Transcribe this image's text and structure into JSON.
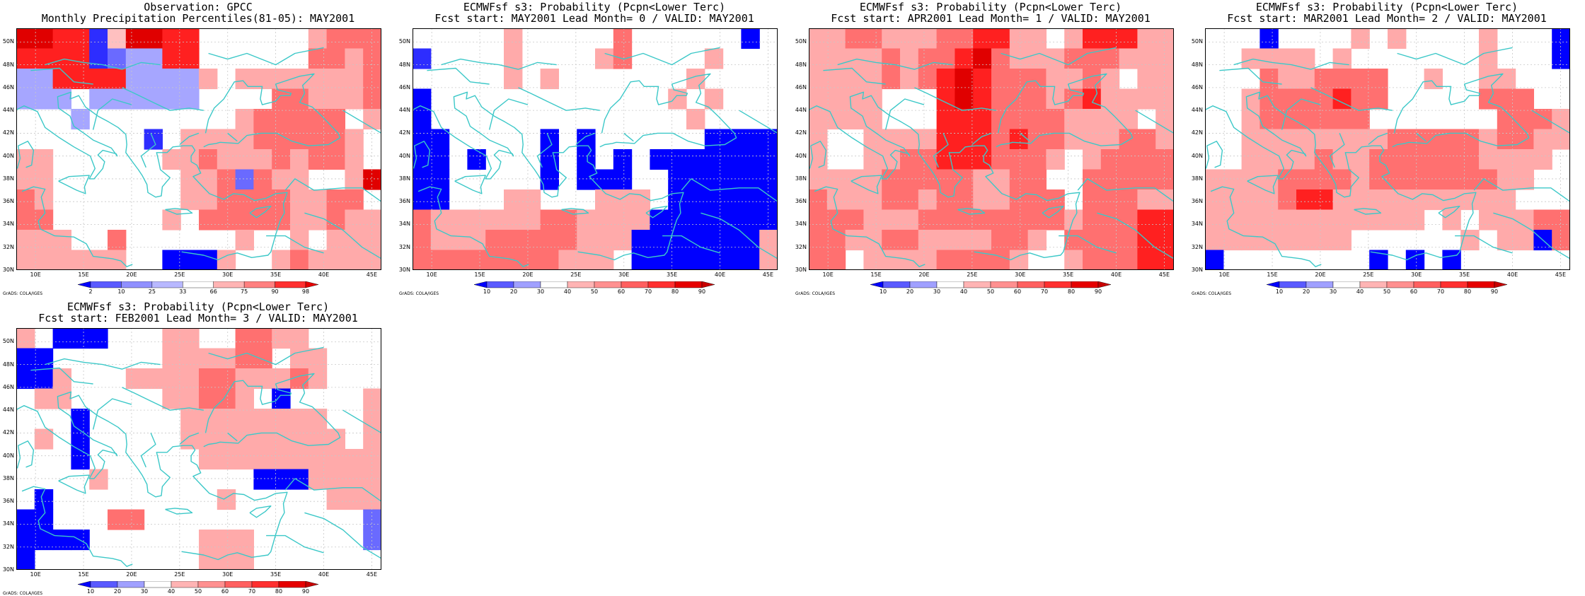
{
  "panels": [
    {
      "title": [
        "Observation: GPCC",
        "Monthly Precipitation Percentiles(81-05): MAY2001"
      ],
      "colorbar_labels": [
        "2",
        "10",
        "25",
        "33",
        "66",
        "75",
        "90",
        "98"
      ],
      "colorbar_colors": [
        "#0000ff",
        "#5a5aff",
        "#9090ff",
        "#b8b8ff",
        "#ffffff",
        "#ffb4b4",
        "#ff8080",
        "#ff3030",
        "#e80000"
      ],
      "grid_rows": [
        "GGFFBOGGFFxxxxxxCDDD",
        "FFFFBEHHFFxxxxxxDDCD",
        "HHFFFFHHHHCxCCCCCCCD",
        "HHHxHHHHHHxxxxDDCCCD",
        "xxxHxxxxxxxxCDDDDDxC",
        "xxxxxxxBxCCCCDDDDDCx",
        "CCxxxxxxCCDCCCDCDDCx",
        "CCxxxxxxxCCDEDCCxxCG",
        "DCxxxxxxxCCDDDDCCDDx",
        "DDxxxxxxCxDDDDDCCDCC",
        "CCCxxDxxxxxxCxxCxCCC",
        "CCCCCCxxAAACxxCDCCCC"
      ]
    },
    {
      "title": [
        "ECMWFsf s3: Probability (Pcpn<Lower Terc)",
        "Fcst start: MAY2001   Lead Month= 0 / VALID: MAY2001"
      ],
      "colorbar_labels": [
        "10",
        "20",
        "30",
        "40",
        "50",
        "60",
        "70",
        "80",
        "90"
      ],
      "colorbar_colors": [
        "#0000ff",
        "#5a5aff",
        "#a0a0ff",
        "#ffffff",
        "#ffb4b4",
        "#ff9090",
        "#ff6060",
        "#ff3030",
        "#e60000",
        "#c80000"
      ],
      "grid_rows": [
        "xxxxxCxxxxxDxxxxxxAx",
        "BxxxxCxxxxCDxxxxCxxx",
        "xxxxxCxCxxxxxxxCxxxx",
        "AxxxxxxxxxxxxxCxCxxx",
        "AxxxxxxxxxxxxxxCxxxx",
        "AAxxxxxAxAxxxxxxAAAA",
        "AAxAxxxAxAxAxAAAAAAA",
        "AAxxxxxAxAAAxxAAAAAA",
        "AAxxxCCxxxCCCxAAAAAA",
        "DCCCCCCDDCCCCAAAAAAA",
        "DCCCDDDDDCCCAAAAAAAC",
        "DDDDDDDDCCCxAAAAAAAC"
      ]
    },
    {
      "title": [
        "ECMWFsf s3: Probability (Pcpn<Lower Terc)",
        "Fcst start: APR2001   Lead Month= 1 / VALID: MAY2001"
      ],
      "colorbar_labels": [
        "10",
        "20",
        "30",
        "40",
        "50",
        "60",
        "70",
        "80",
        "90"
      ],
      "colorbar_colors": [
        "#0000ff",
        "#5a5aff",
        "#a0a0ff",
        "#ffffff",
        "#ffb4b4",
        "#ff9090",
        "#ff6060",
        "#ff3030",
        "#e60000",
        "#c80000"
      ],
      "grid_rows": [
        "CCDDCCCDDFFCCxCFFFCC",
        "CCCCDCDDFGDCCCDDDCCC",
        "CCCCDCDFGFDDDCCDCxCC",
        "CCCCxxxFGFDDDCDFCCCC",
        "CCCCxxxFFFDDDDCCCCxC",
        "CxxCCCCFFFDFDDCCCDDC",
        "CxxCCDDFFFDDDCxCDDDD",
        "CCCCDDDDDCCDDxxDDDDD",
        "DCCCDDCDDCCDDDxDDDCC",
        "DDDCCCDDDDDDDDCDDDFF",
        "DDCCDDCCCCDDCxDDDDFF",
        "DDxCCCCDDDDCxxCDDDFF"
      ]
    },
    {
      "title": [
        "ECMWFsf s3: Probability (Pcpn<Lower Terc)",
        "Fcst start: MAR2001   Lead Month= 2 / VALID: MAY2001"
      ],
      "colorbar_labels": [
        "10",
        "20",
        "30",
        "40",
        "50",
        "60",
        "70",
        "80",
        "90"
      ],
      "colorbar_colors": [
        "#0000ff",
        "#5a5aff",
        "#a0a0ff",
        "#ffffff",
        "#ffb4b4",
        "#ff9090",
        "#ff6060",
        "#ff3030",
        "#e60000",
        "#c80000"
      ],
      "grid_rows": [
        "xxxAxxxxCxCxxxxCxxxA",
        "xxCCCCxCxxxxxxxCxxxA",
        "xxxDCCDDDDxxCxxCCxxx",
        "xxCDDDDFDDxxxxxDDDxx",
        "xxCDDDDDDxxxxxxxDDDC",
        "xxCCCCCCCCDDDDDCDDCC",
        "xxCCCCDCCDDDDDDCCCCx",
        "CCCCDDDDCDDDDDDDCCxx",
        "CCCCDFFCCCCCCCCCCxxx",
        "CCCCCCCCCCCCxCxCCCDD",
        "CCCCCCCCxxxxxxCxCCAD",
        "AxxxxxxxxAxAxAxxxxxx"
      ]
    },
    {
      "title": [
        "ECMWFsf s3: Probability (Pcpn<Lower Terc)",
        "Fcst start: FEB2001   Lead Month= 3 / VALID: MAY2001"
      ],
      "colorbar_labels": [
        "10",
        "20",
        "30",
        "40",
        "50",
        "60",
        "70",
        "80",
        "90"
      ],
      "colorbar_colors": [
        "#0000ff",
        "#5a5aff",
        "#a0a0ff",
        "#ffffff",
        "#ffb4b4",
        "#ff9090",
        "#ff6060",
        "#ff3030",
        "#e60000",
        "#c80000"
      ],
      "grid_rows": [
        "CxAAAxxxCCxxDDCCxxxx",
        "AAxxxxxxCCCCDDxCCxxx",
        "AACxxxCCCCDDCCCDCxxx",
        "xCCxxxxxCCDDCxAxxxxC",
        "xxxAxxxxxCCCCCCCCxxC",
        "xCxAxxxxxCCCCCCCCCxC",
        "xxxAxxxxxxCCCCCCCCCC",
        "xxxxCxxxxxxxxAAACCCC",
        "xAxxxxxxxxxCxxxxxCCC",
        "AAxxxDDxxxxxxxxxxxxE",
        "AAAAxxxxxxCCCxxxxxxE",
        "AxxxxxxxxxCCCxxxxxxx"
      ]
    }
  ],
  "lat_labels": [
    "50N",
    "48N",
    "46N",
    "44N",
    "42N",
    "40N",
    "38N",
    "36N",
    "34N",
    "32N",
    "30N"
  ],
  "lon_labels": [
    "10E",
    "15E",
    "20E",
    "25E",
    "30E",
    "35E",
    "40E",
    "45E"
  ],
  "credit": "GrADS: COLA/IGES",
  "colors": {
    "A": "#0000ff",
    "B": "#2d2dff",
    "E": "#6a6aff",
    "H": "#a6a6ff",
    "C": "#ffaaaa",
    "D": "#ff7070",
    "F": "#ff2020",
    "G": "#e00000",
    "O": "#ffc0c0",
    "coast": "#3cc8c8",
    "grid": "#c8c8c8"
  }
}
